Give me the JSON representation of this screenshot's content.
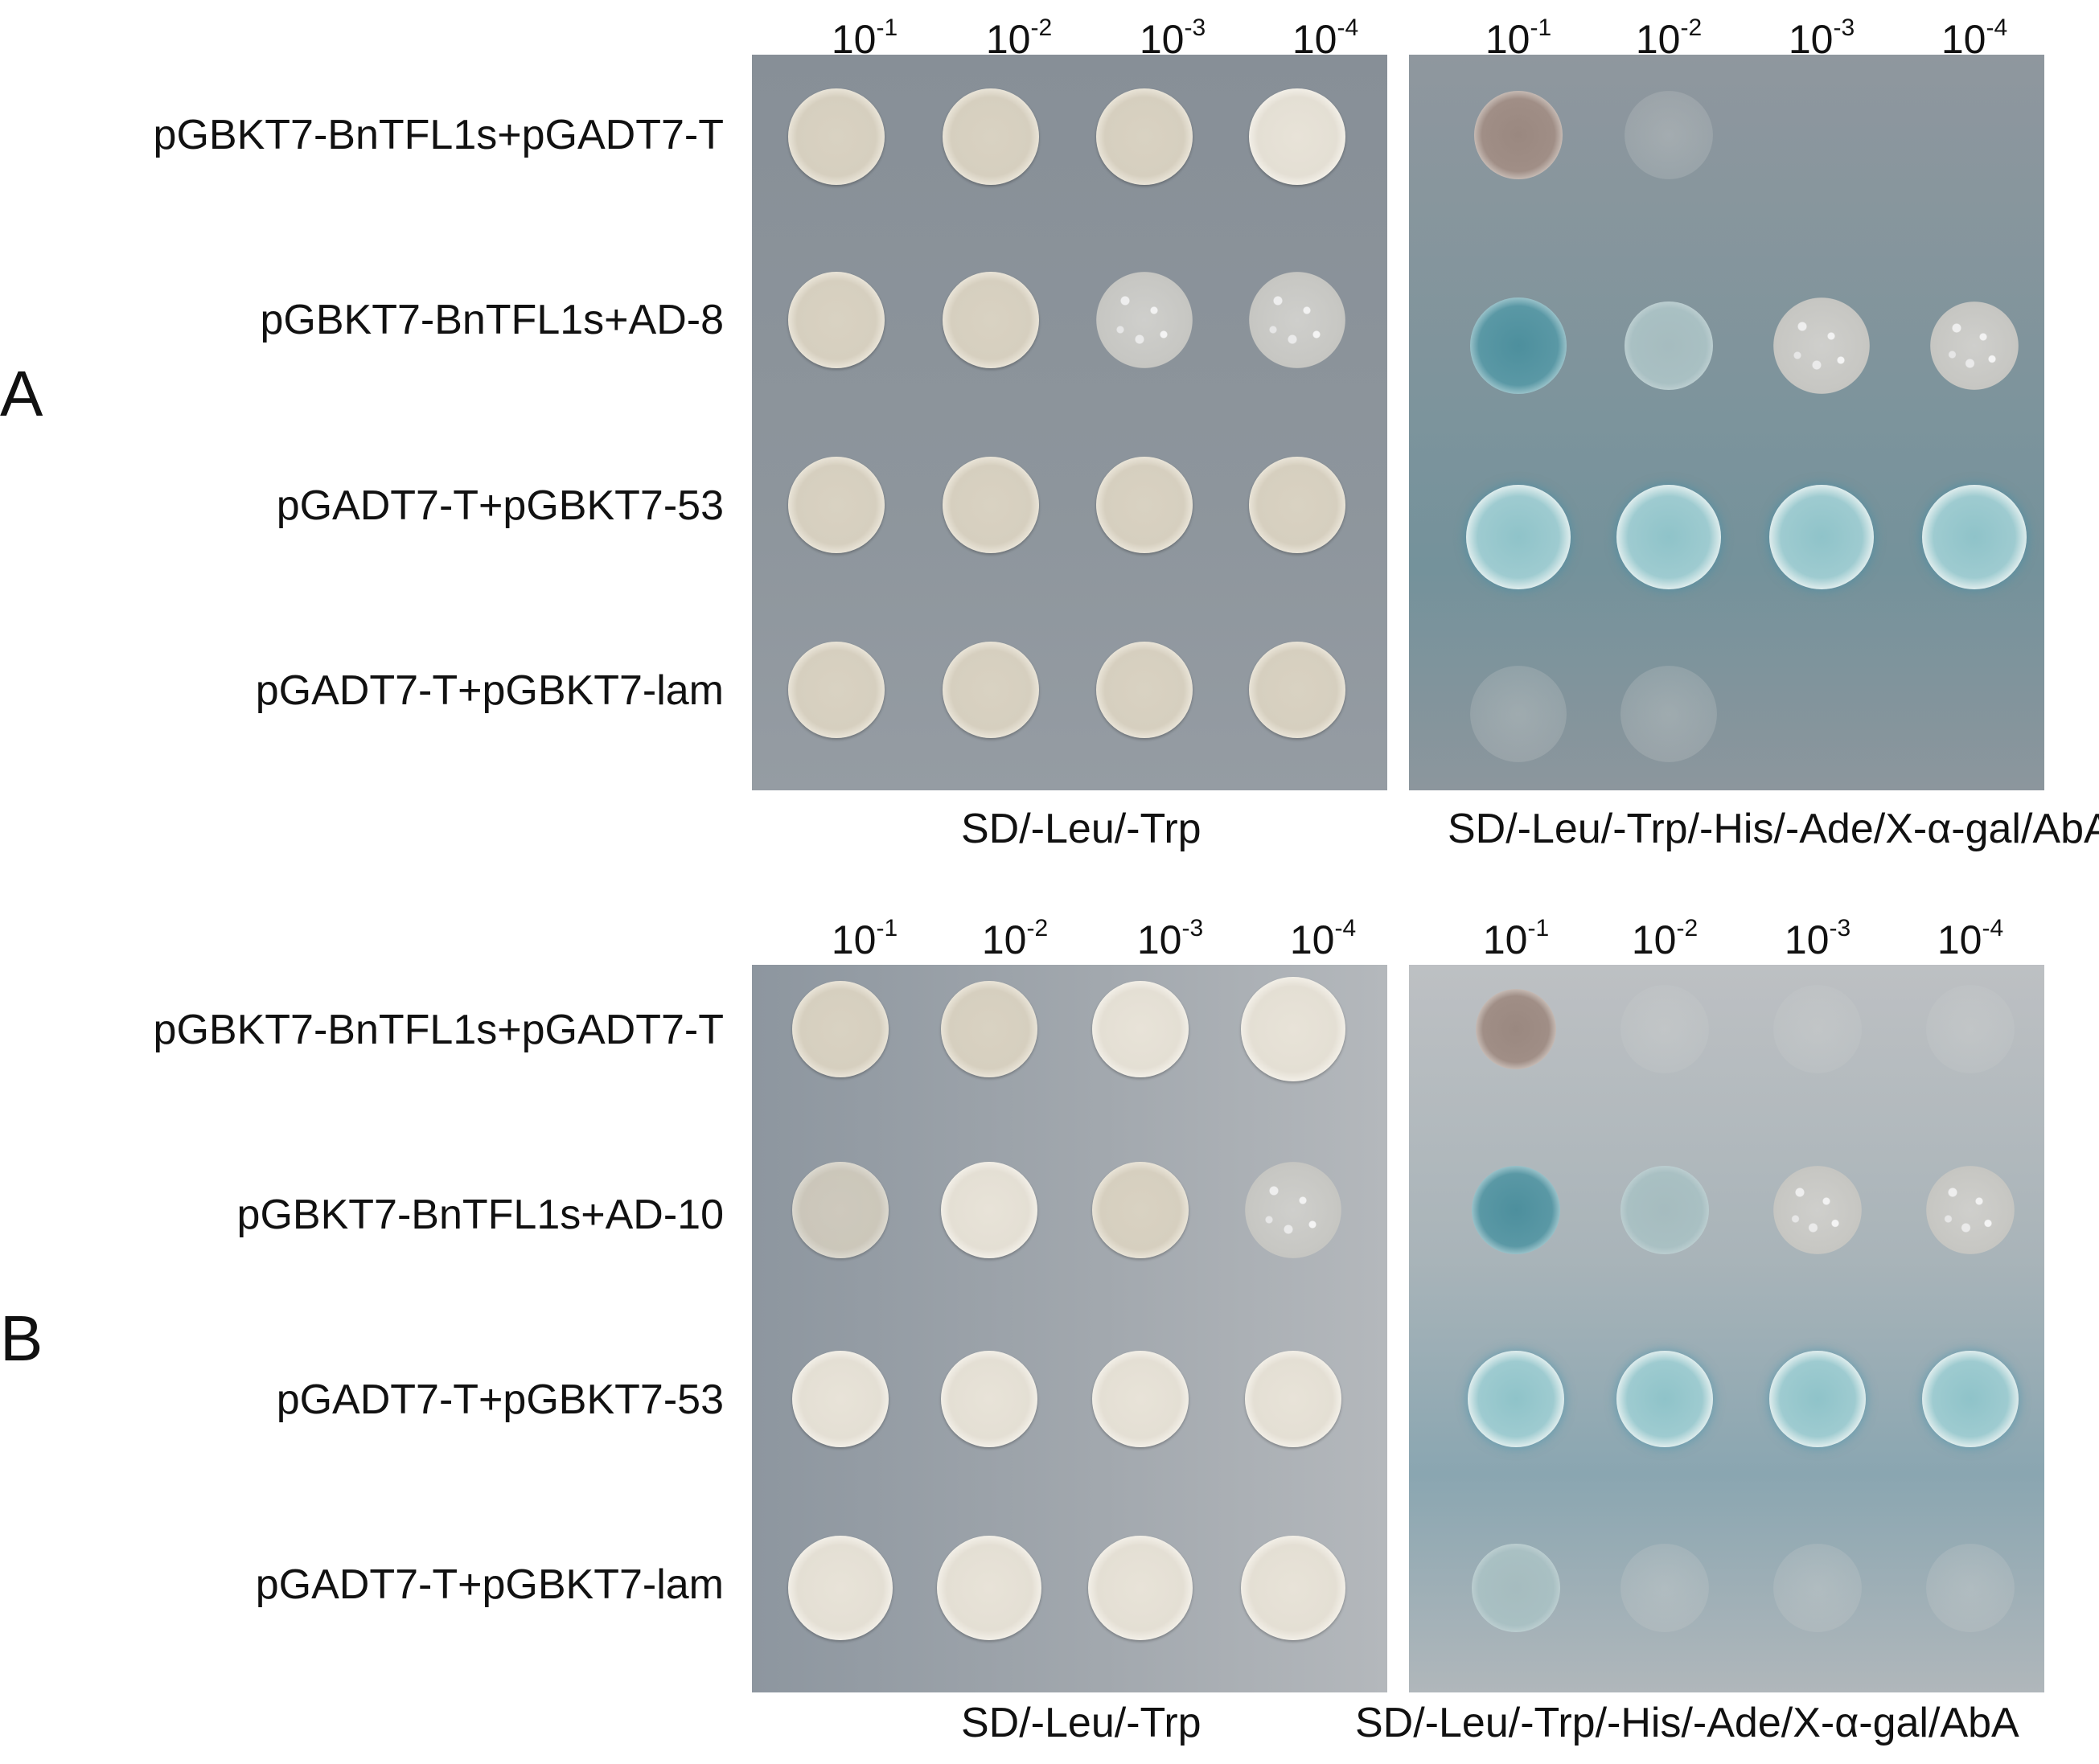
{
  "dilutions": [
    "10",
    "10",
    "10",
    "10"
  ],
  "dilution_exponents": [
    "-1",
    "-2",
    "-3",
    "-4"
  ],
  "panel_a": {
    "letter": "A",
    "rows": [
      "pGBKT7-BnTFL1s+pGADT7-T",
      "pGBKT7-BnTFL1s+AD-8",
      "pGADT7-T+pGBKT7-53",
      "pGADT7-T+pGBKT7-lam"
    ],
    "left_medium": "SD/-Leu/-Trp",
    "right_medium": "SD/-Leu/-Trp/-His/-Ade/X-α-gal/AbA"
  },
  "panel_b": {
    "letter": "B",
    "rows": [
      "pGBKT7-BnTFL1s+pGADT7-T",
      "pGBKT7-BnTFL1s+AD-10",
      "pGADT7-T+pGBKT7-53",
      "pGADT7-T+pGBKT7-lam"
    ],
    "left_medium": "SD/-Leu/-Trp",
    "right_medium": "SD/-Leu/-Trp/-His/-Ade/X-α-gal/AbA"
  },
  "colors": {
    "plate_gray": "#8d959c",
    "colony_cream": "#d9d2c2",
    "colony_blue": "#8fc3c9",
    "colony_brown": "#9a8880"
  }
}
